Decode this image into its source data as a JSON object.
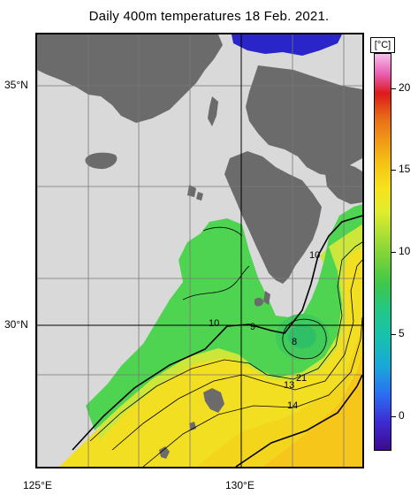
{
  "title": "Daily 400m temperatures 18 Feb. 2021.",
  "axes": {
    "lat_labels": [
      {
        "label": "35°N",
        "value": 35
      },
      {
        "label": "30°N",
        "value": 30
      }
    ],
    "lon_labels": [
      {
        "label": "125°E",
        "value": 125
      },
      {
        "label": "130°E",
        "value": 130
      }
    ],
    "lon_range": [
      125,
      132.5
    ],
    "lat_range": [
      27,
      37.5
    ],
    "grid": true
  },
  "colorbar": {
    "unit": "[°C]",
    "ticks": [
      "20",
      "15",
      "10",
      "5",
      "0"
    ],
    "range": [
      -2,
      22
    ]
  },
  "contour_labels": [
    "10",
    "10",
    "9",
    "8",
    "13",
    "2",
    "1",
    "14"
  ],
  "colors": {
    "land": "#6b6b6b",
    "no_data": "#d9d9d9",
    "warm_water": "#f5e11e",
    "cool_water": "#52d456",
    "cold_patch": "#2020c8"
  }
}
